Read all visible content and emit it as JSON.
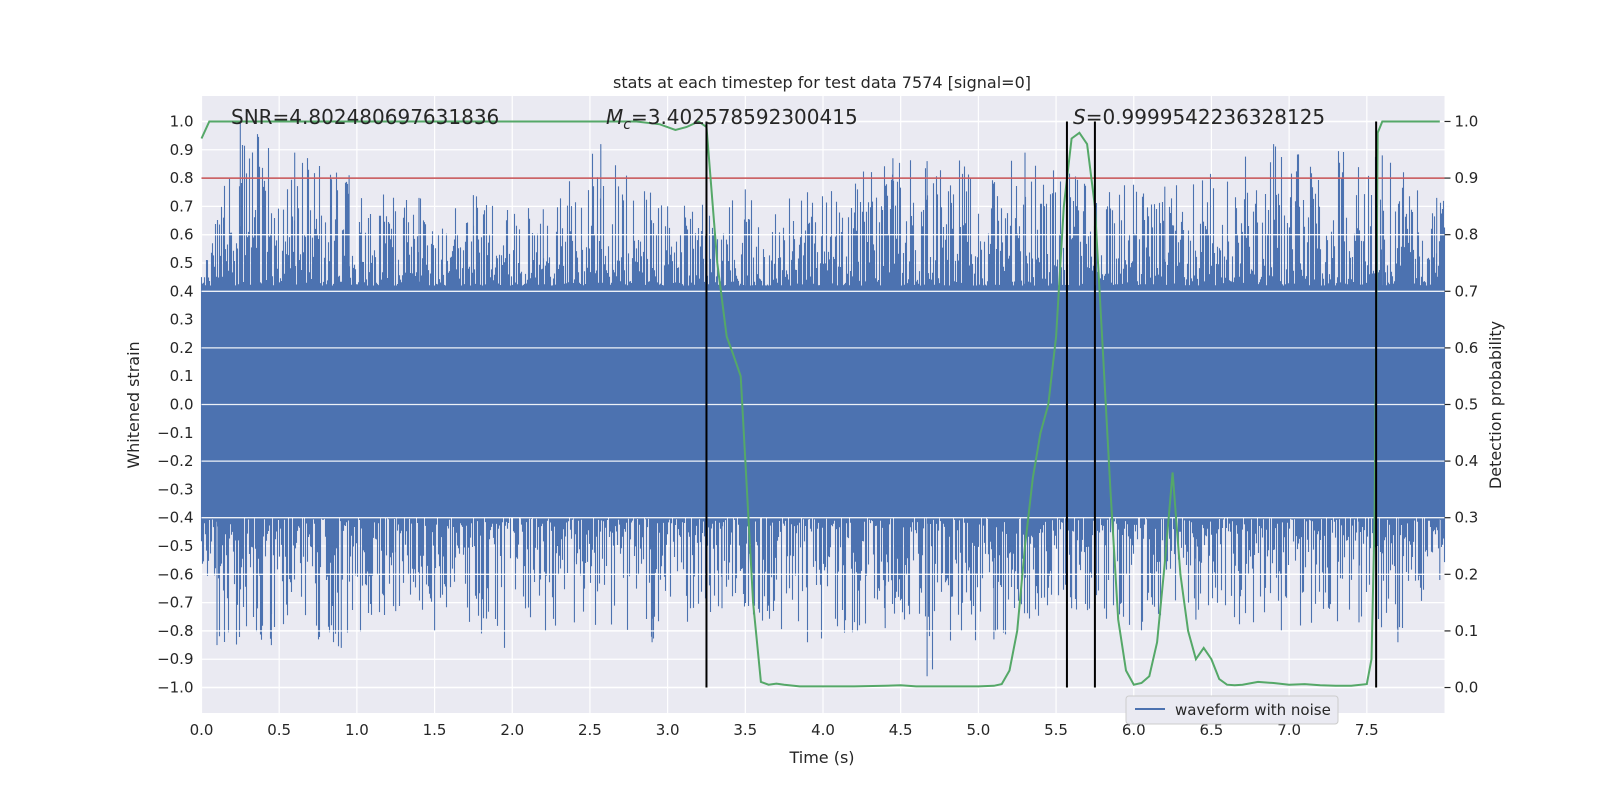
{
  "chart_data": {
    "type": "line",
    "title": "stats at each timestep for test data 7574 [signal=0]",
    "xlabel": "Time (s)",
    "ylabel": "Whitened strain",
    "ylabel_right": "Detection probability",
    "xlim": [
      0.0,
      8.0
    ],
    "ylim": [
      -1.09,
      1.09
    ],
    "ylim_right": [
      -0.045,
      1.045
    ],
    "xticks": [
      "0.0",
      "0.5",
      "1.0",
      "1.5",
      "2.0",
      "2.5",
      "3.0",
      "3.5",
      "4.0",
      "4.5",
      "5.0",
      "5.5",
      "6.0",
      "6.5",
      "7.0",
      "7.5"
    ],
    "yticks": [
      "1.0",
      "0.9",
      "0.8",
      "0.7",
      "0.6",
      "0.5",
      "0.4",
      "0.3",
      "0.2",
      "0.1",
      "0.0",
      "-0.1",
      "-0.2",
      "-0.3",
      "-0.4",
      "-0.5",
      "-0.6",
      "-0.7",
      "-0.8",
      "-0.9",
      "-1.0"
    ],
    "yticks_right": [
      "1.0",
      "0.9",
      "0.8",
      "0.7",
      "0.6",
      "0.5",
      "0.4",
      "0.3",
      "0.2",
      "0.1",
      "0.0"
    ],
    "annotations": {
      "snr": "SNR=4.802480697631836",
      "mc": "=3.402578592300415",
      "mc_symbol": "M",
      "mc_sub": "c",
      "s": "=0.9999542236328125",
      "s_symbol": "S"
    },
    "legend": {
      "label": "waveform with noise",
      "placement": "lower-right"
    },
    "threshold": {
      "value": 0.9,
      "axis": "right",
      "color": "#c44e52"
    },
    "vertical_lines": [
      3.25,
      5.57,
      5.75,
      7.56
    ],
    "series": [
      {
        "name": "waveform with noise",
        "color": "#4c72b0",
        "envelope_upper": [
          [
            0.0,
            0.45
          ],
          [
            0.25,
            1.0
          ],
          [
            0.6,
            0.89
          ],
          [
            0.95,
            0.81
          ],
          [
            1.4,
            0.73
          ],
          [
            1.75,
            0.74
          ],
          [
            2.2,
            0.69
          ],
          [
            2.57,
            0.92
          ],
          [
            3.0,
            0.7
          ],
          [
            3.5,
            0.76
          ],
          [
            3.9,
            0.75
          ],
          [
            4.45,
            0.87
          ],
          [
            4.67,
            0.86
          ],
          [
            5.3,
            0.89
          ],
          [
            5.75,
            0.79
          ],
          [
            6.2,
            0.77
          ],
          [
            6.9,
            0.92
          ],
          [
            7.6,
            0.88
          ],
          [
            7.95,
            0.73
          ]
        ],
        "envelope_lower": [
          [
            0.1,
            -0.85
          ],
          [
            0.45,
            -0.85
          ],
          [
            0.9,
            -0.86
          ],
          [
            1.25,
            -0.73
          ],
          [
            1.5,
            -0.8
          ],
          [
            1.95,
            -0.86
          ],
          [
            2.4,
            -0.77
          ],
          [
            2.9,
            -0.84
          ],
          [
            3.35,
            -0.72
          ],
          [
            3.9,
            -0.84
          ],
          [
            4.4,
            -0.79
          ],
          [
            4.67,
            -0.96
          ],
          [
            5.1,
            -0.83
          ],
          [
            5.6,
            -0.72
          ],
          [
            6.05,
            -0.8
          ],
          [
            6.4,
            -0.76
          ],
          [
            6.95,
            -0.8
          ],
          [
            7.45,
            -0.77
          ],
          [
            7.7,
            -0.84
          ],
          [
            7.97,
            -0.62
          ]
        ]
      },
      {
        "name": "detection probability",
        "axis": "right",
        "color": "#55a868",
        "x": [
          0.0,
          0.05,
          0.1,
          0.5,
          1.0,
          1.5,
          2.0,
          2.5,
          2.8,
          2.95,
          3.05,
          3.12,
          3.2,
          3.25,
          3.32,
          3.38,
          3.42,
          3.47,
          3.55,
          3.6,
          3.65,
          3.7,
          3.75,
          3.85,
          4.0,
          4.2,
          4.4,
          4.5,
          4.6,
          4.8,
          5.0,
          5.1,
          5.15,
          5.2,
          5.25,
          5.3,
          5.35,
          5.4,
          5.45,
          5.5,
          5.55,
          5.6,
          5.65,
          5.7,
          5.75,
          5.8,
          5.85,
          5.9,
          5.95,
          6.0,
          6.05,
          6.1,
          6.15,
          6.2,
          6.25,
          6.3,
          6.35,
          6.4,
          6.45,
          6.5,
          6.55,
          6.6,
          6.65,
          6.7,
          6.8,
          6.9,
          7.0,
          7.1,
          7.2,
          7.3,
          7.4,
          7.5,
          7.53,
          7.55,
          7.57,
          7.6,
          7.63,
          7.7,
          7.8,
          7.97
        ],
        "y": [
          0.97,
          1.0,
          1.0,
          1.0,
          1.0,
          1.0,
          1.0,
          1.0,
          1.0,
          0.995,
          0.985,
          0.99,
          1.0,
          0.99,
          0.75,
          0.62,
          0.59,
          0.55,
          0.15,
          0.01,
          0.005,
          0.007,
          0.005,
          0.002,
          0.002,
          0.002,
          0.003,
          0.004,
          0.002,
          0.002,
          0.002,
          0.003,
          0.006,
          0.03,
          0.1,
          0.25,
          0.37,
          0.45,
          0.5,
          0.62,
          0.85,
          0.97,
          0.98,
          0.96,
          0.85,
          0.6,
          0.35,
          0.12,
          0.03,
          0.005,
          0.008,
          0.02,
          0.08,
          0.22,
          0.38,
          0.2,
          0.1,
          0.05,
          0.07,
          0.05,
          0.015,
          0.005,
          0.004,
          0.005,
          0.01,
          0.008,
          0.005,
          0.006,
          0.004,
          0.003,
          0.003,
          0.006,
          0.05,
          0.3,
          0.98,
          1.0,
          1.0,
          1.0,
          1.0,
          1.0
        ]
      }
    ]
  }
}
